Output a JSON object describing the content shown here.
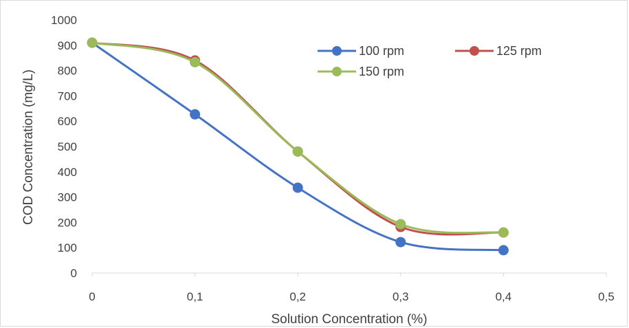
{
  "chart_data": {
    "type": "line",
    "title": "",
    "xlabel": "Solution Concentration (%)",
    "ylabel": "COD Concentration (mg/L)",
    "xlim": [
      0,
      0.5
    ],
    "ylim": [
      0,
      1000
    ],
    "x_ticks": [
      0,
      0.1,
      0.2,
      0.3,
      0.4,
      0.5
    ],
    "x_tick_labels": [
      "0",
      "0,1",
      "0,2",
      "0,3",
      "0,4",
      "0,5"
    ],
    "y_ticks": [
      0,
      100,
      200,
      300,
      400,
      500,
      600,
      700,
      800,
      900,
      1000
    ],
    "y_tick_labels": [
      "0",
      "100",
      "200",
      "300",
      "400",
      "500",
      "600",
      "700",
      "800",
      "900",
      "1000"
    ],
    "grid": false,
    "smooth": true,
    "legend_position": "top-right",
    "series": [
      {
        "name": "100 rpm",
        "color": "#4472c4",
        "x": [
          0,
          0.1,
          0.2,
          0.3,
          0.4
        ],
        "y": [
          910,
          627,
          337,
          122,
          90
        ]
      },
      {
        "name": "125 rpm",
        "color": "#c0504d",
        "x": [
          0,
          0.1,
          0.2,
          0.3,
          0.4
        ],
        "y": [
          910,
          840,
          480,
          182,
          160
        ]
      },
      {
        "name": "150 rpm",
        "color": "#9bbb59",
        "x": [
          0,
          0.1,
          0.2,
          0.3,
          0.4
        ],
        "y": [
          910,
          833,
          480,
          193,
          160
        ]
      }
    ]
  }
}
